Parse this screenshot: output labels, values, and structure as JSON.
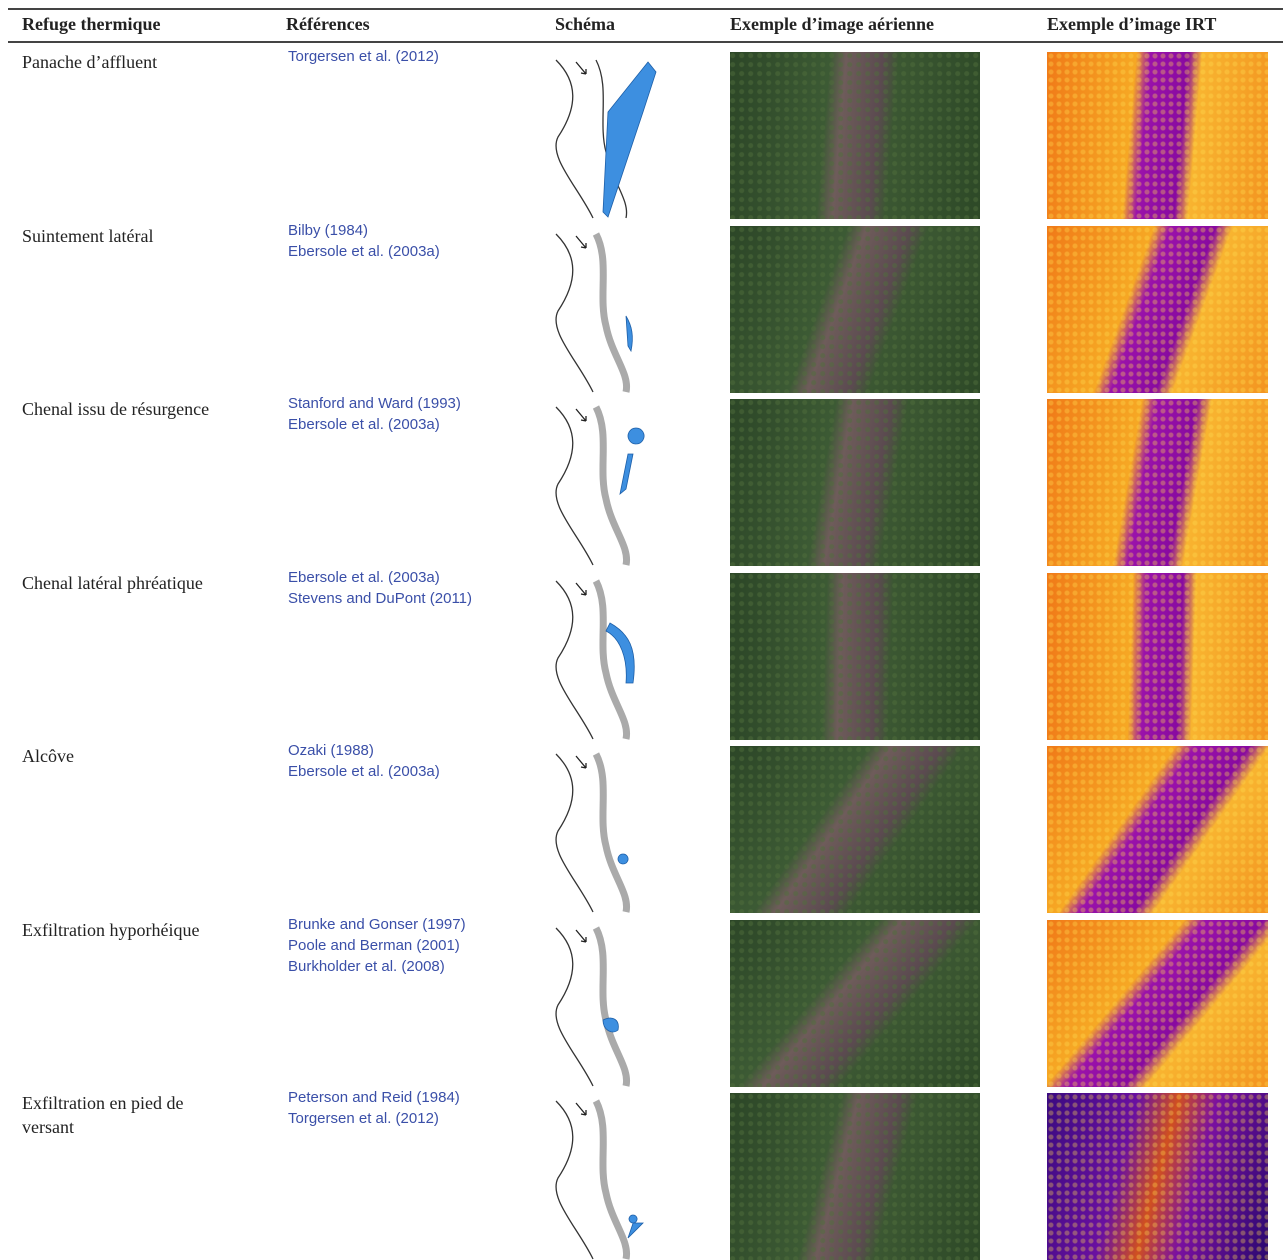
{
  "header": {
    "columns": [
      "Refuge thermique",
      "Références",
      "Schéma",
      "Exemple d’image aérienne",
      "Exemple d’image IRT"
    ]
  },
  "rows": [
    {
      "label": "Panache d’affluent",
      "references": [
        "Torgersen et al. (2012)"
      ]
    },
    {
      "label": "Suintement latéral",
      "references": [
        "Bilby (1984)",
        "Ebersole et al. (2003a)"
      ]
    },
    {
      "label": "Chenal issu de résurgence",
      "references": [
        "Stanford and Ward (1993)",
        "Ebersole et al. (2003a)"
      ]
    },
    {
      "label": "Chenal latéral phréatique",
      "references": [
        "Ebersole et al. (2003a)",
        "Stevens and DuPont (2011)"
      ]
    },
    {
      "label": "Alcôve",
      "references": [
        "Ozaki (1988)",
        "Ebersole et al. (2003a)"
      ]
    },
    {
      "label": "Exfiltration hyporhéique",
      "references": [
        "Brunke and Gonser (1997)",
        "Poole and Berman (2001)",
        "Burkholder et al. (2008)"
      ]
    },
    {
      "label": "Exfiltration en pied de versant",
      "references": [
        "Peterson and Reid (1984)",
        "Torgersen et al. (2012)"
      ]
    }
  ]
}
